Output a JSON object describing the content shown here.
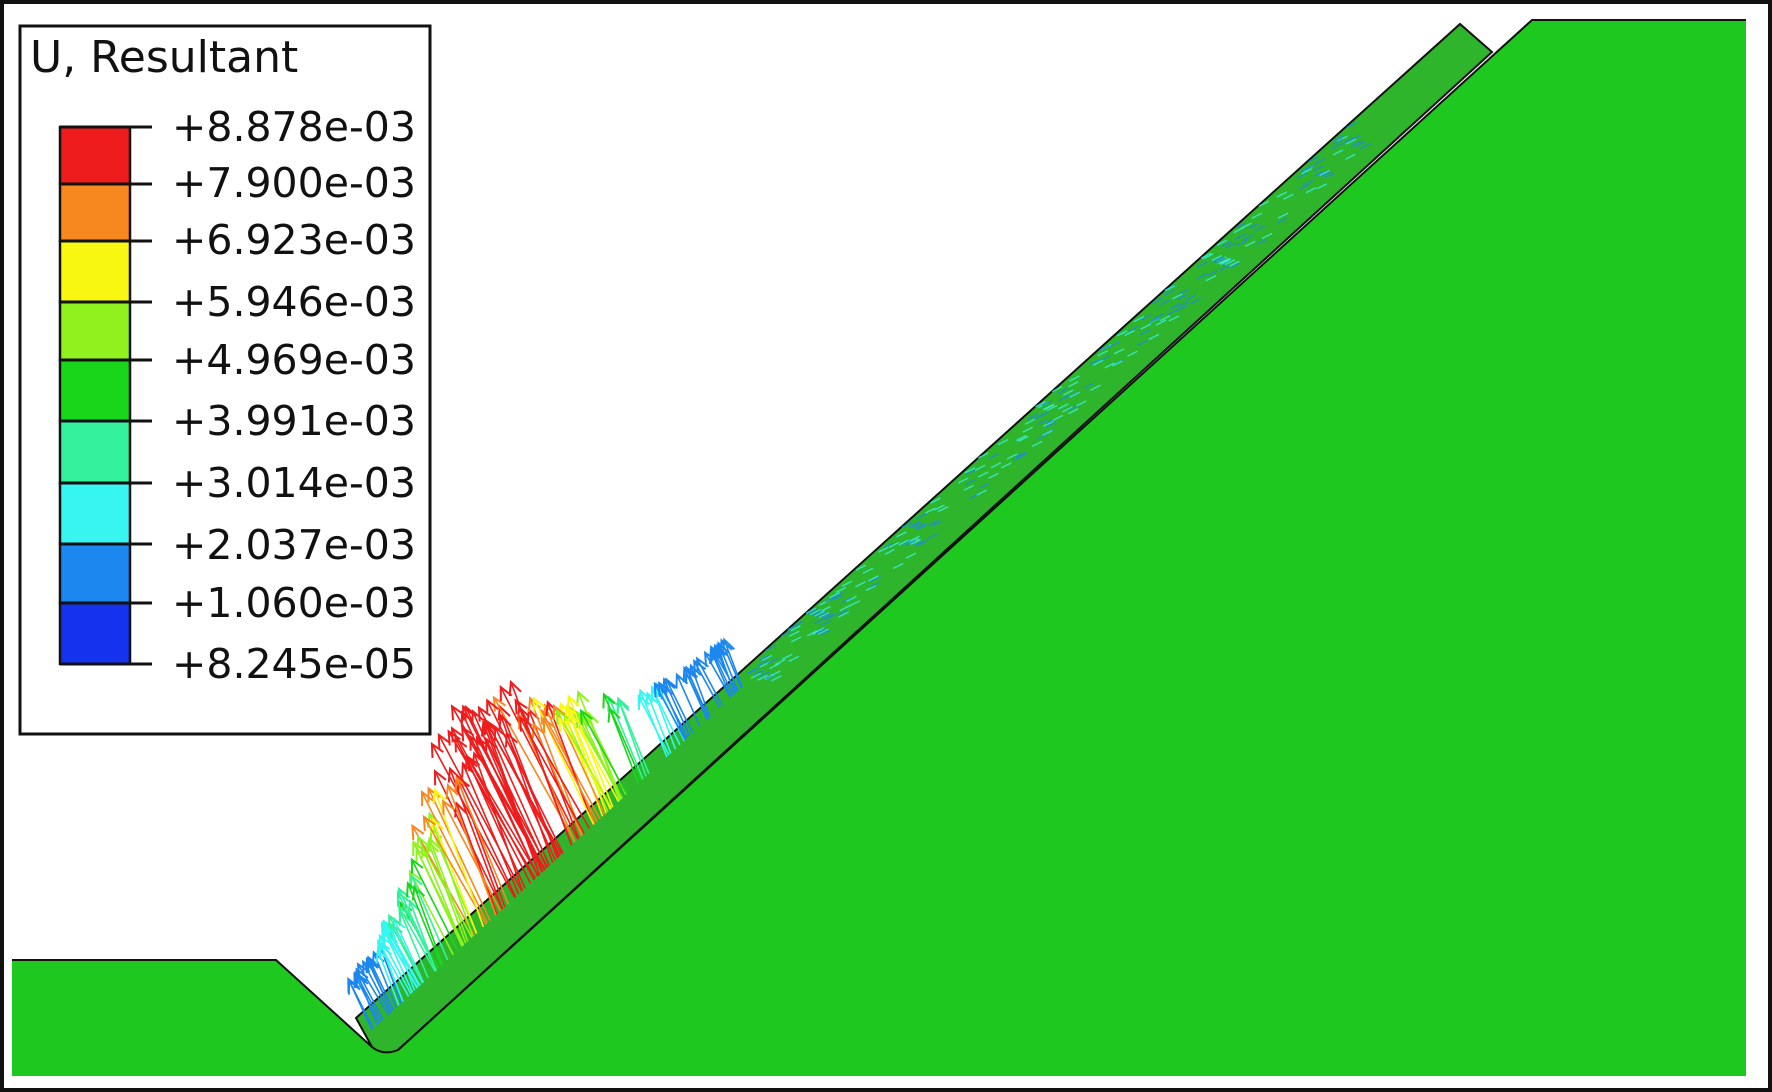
{
  "legend": {
    "title": "U, Resultant",
    "values": [
      "+8.878e-03",
      "+7.900e-03",
      "+6.923e-03",
      "+5.946e-03",
      "+4.969e-03",
      "+3.991e-03",
      "+3.014e-03",
      "+2.037e-03",
      "+1.060e-03",
      "+8.245e-05"
    ],
    "colors": [
      "#ee1c1c",
      "#f7881f",
      "#f7f712",
      "#8ff21e",
      "#1ad61a",
      "#34f19d",
      "#37f5f1",
      "#1c87ee",
      "#1533ee"
    ]
  },
  "colors": {
    "body": "#1ec81e",
    "layer": "#2fb52c",
    "outline": "#111111",
    "background": "#ffffff"
  }
}
